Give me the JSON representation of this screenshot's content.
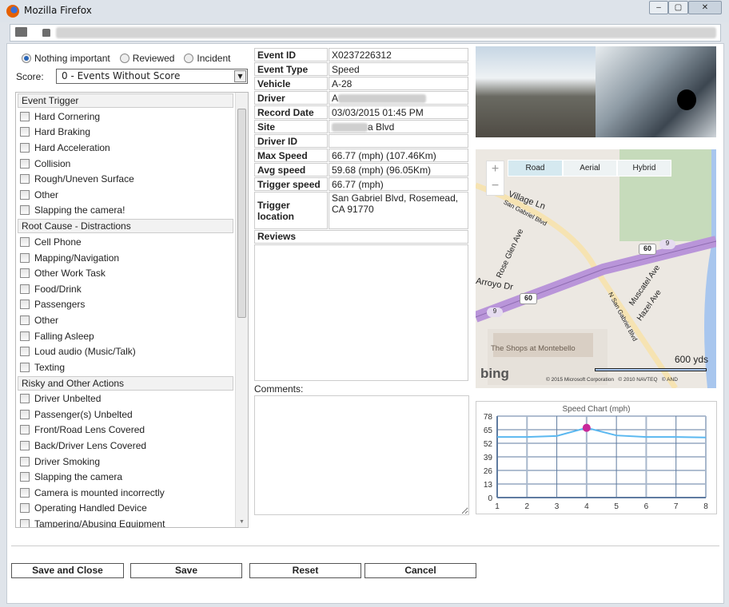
{
  "window": {
    "title": "Mozilla Firefox",
    "minimize": "‒",
    "maximize": "▢",
    "close": "✕"
  },
  "status": {
    "options": [
      {
        "label": "Nothing important",
        "selected": true
      },
      {
        "label": "Reviewed",
        "selected": false
      },
      {
        "label": "Incident",
        "selected": false
      }
    ]
  },
  "score": {
    "label": "Score:",
    "value": "0 - Events Without Score"
  },
  "checklist": [
    {
      "section": "Event Trigger",
      "items": [
        "Hard Cornering",
        "Hard Braking",
        "Hard Acceleration",
        "Collision",
        "Rough/Uneven Surface",
        "Other",
        "Slapping the camera!"
      ]
    },
    {
      "section": "Root Cause - Distractions",
      "items": [
        "Cell Phone",
        "Mapping/Navigation",
        "Other Work Task",
        "Food/Drink",
        "Passengers",
        "Other",
        "Falling Asleep",
        "Loud audio (Music/Talk)",
        "Texting"
      ]
    },
    {
      "section": "Risky and Other Actions",
      "items": [
        "Driver Unbelted",
        "Passenger(s) Unbelted",
        "Front/Road Lens Covered",
        "Back/Driver Lens Covered",
        "Driver Smoking",
        "Slapping the camera",
        "Camera is mounted incorrectly",
        "Operating Handled Device",
        "Tampering/Abusing Equipment"
      ]
    }
  ],
  "event": {
    "rows": [
      {
        "k": "Event ID",
        "v": "X0237226312"
      },
      {
        "k": "Event Type",
        "v": "Speed"
      },
      {
        "k": "Vehicle",
        "v": "A-28"
      },
      {
        "k": "Driver",
        "v": "A"
      },
      {
        "k": "Record Date",
        "v": "03/03/2015 01:45 PM"
      },
      {
        "k": "Site",
        "v": "a Blvd"
      },
      {
        "k": "Driver ID",
        "v": ""
      },
      {
        "k": "Max Speed",
        "v": "66.77 (mph) (107.46Km)"
      },
      {
        "k": "Avg speed",
        "v": "59.68 (mph) (96.05Km)"
      },
      {
        "k": "Trigger speed",
        "v": "66.77 (mph)"
      },
      {
        "k": "Trigger location",
        "v": "San Gabriel Blvd, Rosemead, CA 91770"
      }
    ],
    "reviews_label": "Reviews",
    "comments_label": "Comments:",
    "comments_value": ""
  },
  "map": {
    "tabs": [
      "Road",
      "Aerial",
      "Hybrid"
    ],
    "active_tab": "Road",
    "zoom_in": "+",
    "zoom_out": "−",
    "labels": [
      "Village Ln",
      "San Gabriel Blvd",
      "Rose Glen Ave",
      "Arroyo Dr",
      "N San Gabriel Blvd",
      "Muscatel Ave",
      "Hazel Ave",
      "The Shops at Montebello",
      "60",
      "60",
      "9",
      "9"
    ],
    "scale": "600 yds",
    "logo": "bing",
    "copyright": "© 2015 Microsoft Corporation   © 2010 NAVTEQ   © AND"
  },
  "chart_data": {
    "type": "line",
    "title": "Speed Chart (mph)",
    "x": [
      1,
      2,
      3,
      4,
      5,
      6,
      7,
      8
    ],
    "values": [
      58,
      58,
      59,
      66.77,
      59.5,
      58,
      58,
      57.5
    ],
    "highlight_index": 3,
    "ylim": [
      0,
      78
    ],
    "yticks": [
      0,
      13,
      26,
      39,
      52,
      65,
      78
    ],
    "grid": true,
    "line_color": "#5bb8f0",
    "marker_color": "#c8289a"
  },
  "buttons": {
    "save_close": "Save and Close",
    "save": "Save",
    "reset": "Reset",
    "cancel": "Cancel"
  }
}
